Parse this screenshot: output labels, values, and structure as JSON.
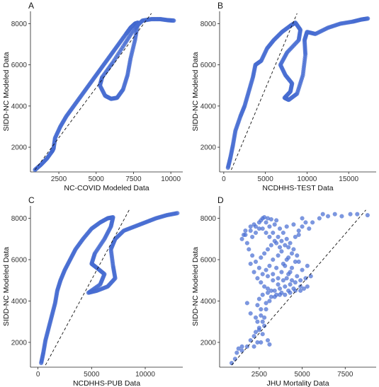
{
  "chart_data": [
    {
      "panel": "A",
      "type": "scatter",
      "xlabel": "NC-COVID Modeled Data",
      "ylabel": "SIDD-NC Modeled Data",
      "xlim": [
        600,
        10800
      ],
      "ylim": [
        800,
        8600
      ],
      "xticks": [
        2500,
        5000,
        7500,
        10000
      ],
      "yticks": [
        2000,
        4000,
        6000,
        8000
      ],
      "reference_line": {
        "style": "dashed",
        "from": [
          900,
          900
        ],
        "to": [
          8700,
          8500
        ]
      },
      "path": [
        [
          900,
          900
        ],
        [
          1300,
          1150
        ],
        [
          1700,
          1450
        ],
        [
          2050,
          1800
        ],
        [
          2150,
          1950
        ],
        [
          2250,
          2450
        ],
        [
          2600,
          3000
        ],
        [
          3000,
          3500
        ],
        [
          3500,
          4000
        ],
        [
          4000,
          4500
        ],
        [
          4500,
          5000
        ],
        [
          5000,
          5500
        ],
        [
          5500,
          6000
        ],
        [
          6000,
          6500
        ],
        [
          6500,
          7000
        ],
        [
          7000,
          7500
        ],
        [
          7300,
          7800
        ],
        [
          7600,
          8000
        ],
        [
          7800,
          8050
        ],
        [
          7600,
          7200
        ],
        [
          7300,
          6300
        ],
        [
          7100,
          5500
        ],
        [
          6800,
          4800
        ],
        [
          6400,
          4400
        ],
        [
          6000,
          4350
        ],
        [
          5600,
          4500
        ],
        [
          5250,
          5000
        ],
        [
          5400,
          5400
        ],
        [
          6100,
          6100
        ],
        [
          6900,
          7000
        ],
        [
          7600,
          7800
        ],
        [
          8100,
          8150
        ],
        [
          8700,
          8220
        ],
        [
          9300,
          8220
        ],
        [
          9800,
          8170
        ],
        [
          10200,
          8150
        ]
      ],
      "points_per_segment": 10,
      "marker_color": "#4a6fd4"
    },
    {
      "panel": "B",
      "type": "scatter",
      "xlabel": "NCDHHS-TEST Data",
      "ylabel": "SIDD-NC Modeled Data",
      "xlim": [
        -500,
        18300
      ],
      "ylim": [
        800,
        8600
      ],
      "xticks": [
        0,
        5000,
        10000,
        15000
      ],
      "yticks": [
        2000,
        4000,
        6000,
        8000
      ],
      "reference_line": {
        "style": "dashed",
        "from": [
          900,
          900
        ],
        "to": [
          8800,
          8500
        ]
      },
      "path": [
        [
          500,
          1000
        ],
        [
          800,
          1500
        ],
        [
          1100,
          2100
        ],
        [
          1400,
          2800
        ],
        [
          2000,
          3500
        ],
        [
          2500,
          4000
        ],
        [
          3000,
          4700
        ],
        [
          3500,
          5400
        ],
        [
          3800,
          6000
        ],
        [
          4500,
          6200
        ],
        [
          5200,
          6800
        ],
        [
          6000,
          7200
        ],
        [
          7000,
          7600
        ],
        [
          8000,
          7900
        ],
        [
          8600,
          8050
        ],
        [
          9200,
          7700
        ],
        [
          9000,
          7200
        ],
        [
          7600,
          6600
        ],
        [
          6800,
          6000
        ],
        [
          7400,
          5500
        ],
        [
          8200,
          5100
        ],
        [
          8000,
          4700
        ],
        [
          7300,
          4400
        ],
        [
          7800,
          4300
        ],
        [
          8800,
          4600
        ],
        [
          9500,
          5500
        ],
        [
          9800,
          6500
        ],
        [
          9700,
          7200
        ],
        [
          10000,
          7600
        ],
        [
          11000,
          7500
        ],
        [
          12500,
          7800
        ],
        [
          14000,
          8000
        ],
        [
          15500,
          8100
        ],
        [
          16500,
          8200
        ],
        [
          17300,
          8250
        ]
      ],
      "points_per_segment": 10,
      "marker_color": "#4a6fd4"
    },
    {
      "panel": "C",
      "type": "scatter",
      "xlabel": "NCDHHS-PUB Data",
      "ylabel": "SIDD-NC Modeled Data",
      "xlim": [
        -700,
        13500
      ],
      "ylim": [
        800,
        8600
      ],
      "xticks": [
        0,
        5000,
        10000
      ],
      "yticks": [
        2000,
        4000,
        6000,
        8000
      ],
      "reference_line": {
        "style": "dashed",
        "from": [
          700,
          900
        ],
        "to": [
          8500,
          8400
        ]
      },
      "path": [
        [
          300,
          1000
        ],
        [
          500,
          1500
        ],
        [
          700,
          2100
        ],
        [
          1000,
          2700
        ],
        [
          1300,
          3300
        ],
        [
          1600,
          3900
        ],
        [
          1800,
          4500
        ],
        [
          2100,
          5000
        ],
        [
          2500,
          5500
        ],
        [
          3000,
          6000
        ],
        [
          3500,
          6500
        ],
        [
          4200,
          7000
        ],
        [
          5000,
          7500
        ],
        [
          5800,
          7800
        ],
        [
          6500,
          8000
        ],
        [
          7000,
          8050
        ],
        [
          6800,
          7600
        ],
        [
          6200,
          7000
        ],
        [
          5300,
          6300
        ],
        [
          5000,
          5800
        ],
        [
          5500,
          5600
        ],
        [
          6200,
          5300
        ],
        [
          5800,
          4800
        ],
        [
          4700,
          4400
        ],
        [
          5500,
          4500
        ],
        [
          6500,
          4700
        ],
        [
          7200,
          5100
        ],
        [
          7000,
          5700
        ],
        [
          6800,
          6500
        ],
        [
          7200,
          7000
        ],
        [
          8000,
          7400
        ],
        [
          9000,
          7600
        ],
        [
          10000,
          7800
        ],
        [
          11000,
          8000
        ],
        [
          12000,
          8150
        ],
        [
          13000,
          8250
        ]
      ],
      "points_per_segment": 10,
      "marker_color": "#4a6fd4"
    },
    {
      "panel": "D",
      "type": "scatter",
      "xlabel": "JHU Mortality Data",
      "ylabel": "SIDD-NC Modeled Data",
      "xlim": [
        200,
        9300
      ],
      "ylim": [
        800,
        8600
      ],
      "xticks": [
        2500,
        5000,
        7500
      ],
      "yticks": [
        2000,
        4000,
        6000,
        8000
      ],
      "reference_line": {
        "style": "dashed",
        "from": [
          900,
          900
        ],
        "to": [
          8700,
          8400
        ]
      },
      "points": [
        [
          900,
          1000
        ],
        [
          1100,
          1200
        ],
        [
          1200,
          1500
        ],
        [
          1300,
          1700
        ],
        [
          1500,
          1600
        ],
        [
          1800,
          1800
        ],
        [
          2000,
          2100
        ],
        [
          2200,
          2300
        ],
        [
          2300,
          2500
        ],
        [
          2500,
          2700
        ],
        [
          2700,
          3000
        ],
        [
          2800,
          3200
        ],
        [
          2600,
          3600
        ],
        [
          2900,
          3900
        ],
        [
          3200,
          4200
        ],
        [
          3500,
          4300
        ],
        [
          3800,
          4400
        ],
        [
          4200,
          4500
        ],
        [
          4500,
          4600
        ],
        [
          4900,
          4700
        ],
        [
          5300,
          4700
        ],
        [
          2600,
          2000
        ],
        [
          2700,
          2400
        ],
        [
          2500,
          2600
        ],
        [
          2800,
          2800
        ],
        [
          3000,
          2100
        ],
        [
          3100,
          1900
        ],
        [
          2400,
          2000
        ],
        [
          2200,
          1800
        ],
        [
          1500,
          1800
        ],
        [
          2000,
          3400
        ],
        [
          2300,
          3200
        ],
        [
          2400,
          3800
        ],
        [
          2500,
          4100
        ],
        [
          2700,
          4300
        ],
        [
          3000,
          4400
        ],
        [
          1800,
          3900
        ],
        [
          1600,
          7200
        ],
        [
          1700,
          7400
        ],
        [
          1500,
          7000
        ],
        [
          2000,
          7600
        ],
        [
          2200,
          7700
        ],
        [
          2500,
          7800
        ],
        [
          2600,
          7900
        ],
        [
          2700,
          8000
        ],
        [
          2800,
          8050
        ],
        [
          3000,
          8000
        ],
        [
          3200,
          7950
        ],
        [
          3500,
          7900
        ],
        [
          2900,
          7800
        ],
        [
          3400,
          7700
        ],
        [
          3700,
          7500
        ],
        [
          3900,
          7300
        ],
        [
          4100,
          7000
        ],
        [
          4000,
          6700
        ],
        [
          3800,
          6400
        ],
        [
          3600,
          6200
        ],
        [
          3300,
          6000
        ],
        [
          3100,
          5700
        ],
        [
          2900,
          5500
        ],
        [
          3000,
          5200
        ],
        [
          3300,
          5000
        ],
        [
          3600,
          4800
        ],
        [
          3900,
          5000
        ],
        [
          4200,
          5300
        ],
        [
          4400,
          5600
        ],
        [
          4600,
          5900
        ],
        [
          4700,
          6200
        ],
        [
          4500,
          6500
        ],
        [
          4300,
          6800
        ],
        [
          4600,
          7100
        ],
        [
          4800,
          7400
        ],
        [
          5000,
          7600
        ],
        [
          5200,
          7800
        ],
        [
          4500,
          7700
        ],
        [
          4100,
          7600
        ],
        [
          1900,
          6500
        ],
        [
          2100,
          6200
        ],
        [
          2000,
          5800
        ],
        [
          2200,
          5400
        ],
        [
          2400,
          5100
        ],
        [
          2600,
          4900
        ],
        [
          2800,
          4700
        ],
        [
          3000,
          4600
        ],
        [
          3200,
          4500
        ],
        [
          3400,
          4500
        ],
        [
          3700,
          4600
        ],
        [
          4000,
          4700
        ],
        [
          4300,
          4800
        ],
        [
          4600,
          4900
        ],
        [
          4900,
          5000
        ],
        [
          5200,
          5100
        ],
        [
          5500,
          5200
        ],
        [
          3800,
          5400
        ],
        [
          3500,
          5600
        ],
        [
          3900,
          5800
        ],
        [
          4100,
          6000
        ],
        [
          3700,
          6600
        ],
        [
          3500,
          6800
        ],
        [
          4800,
          7200
        ],
        [
          5000,
          8000
        ],
        [
          6200,
          8200
        ],
        [
          6500,
          8100
        ],
        [
          6900,
          8200
        ],
        [
          7300,
          8100
        ],
        [
          7800,
          8200
        ],
        [
          8200,
          8200
        ],
        [
          8800,
          8150
        ],
        [
          6000,
          8000
        ],
        [
          5600,
          7800
        ],
        [
          5400,
          7500
        ],
        [
          2100,
          7100
        ],
        [
          1800,
          6800
        ],
        [
          2300,
          7300
        ],
        [
          2500,
          7500
        ],
        [
          3100,
          7600
        ],
        [
          3300,
          7300
        ],
        [
          3600,
          7100
        ],
        [
          3800,
          6900
        ],
        [
          4200,
          6600
        ],
        [
          4400,
          6300
        ],
        [
          4200,
          6100
        ],
        [
          4000,
          5700
        ],
        [
          4300,
          5400
        ],
        [
          4700,
          5200
        ],
        [
          5000,
          5500
        ],
        [
          5300,
          5700
        ],
        [
          4800,
          5900
        ],
        [
          2700,
          5300
        ],
        [
          2500,
          5600
        ],
        [
          2300,
          5900
        ],
        [
          2600,
          6100
        ],
        [
          2800,
          6300
        ],
        [
          3000,
          6500
        ],
        [
          3200,
          6700
        ],
        [
          3400,
          6900
        ],
        [
          3100,
          7100
        ],
        [
          2900,
          7300
        ],
        [
          2700,
          7500
        ],
        [
          2300,
          7600
        ],
        [
          2000,
          7400
        ],
        [
          1700,
          7200
        ],
        [
          2400,
          3000
        ],
        [
          2600,
          3300
        ],
        [
          2900,
          3600
        ],
        [
          3100,
          4000
        ],
        [
          3400,
          4200
        ],
        [
          3700,
          4300
        ],
        [
          4000,
          4300
        ],
        [
          4300,
          4400
        ],
        [
          4600,
          4500
        ],
        [
          4900,
          4500
        ],
        [
          5100,
          4600
        ],
        [
          3600,
          5100
        ],
        [
          3300,
          5300
        ],
        [
          4100,
          5100
        ],
        [
          4400,
          5000
        ]
      ],
      "marker_color": "#4a6fd4"
    }
  ]
}
